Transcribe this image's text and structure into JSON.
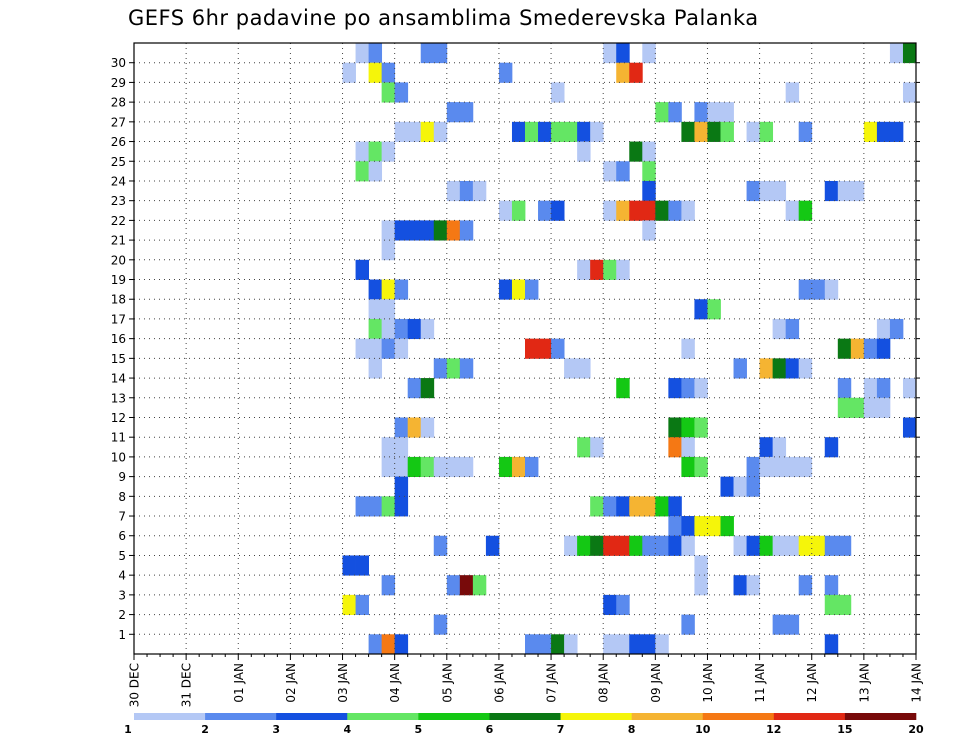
{
  "chart_data": {
    "type": "heatmap",
    "title": "GEFS 6hr padavine po ansamblima Smederevska Palanka",
    "xlabel": "",
    "ylabel": "",
    "x_tick_labels": [
      "30 DEC",
      "31 DEC",
      "01 JAN",
      "02 JAN",
      "03 JAN",
      "04 JAN",
      "05 JAN",
      "06 JAN",
      "07 JAN",
      "08 JAN",
      "09 JAN",
      "10 JAN",
      "11 JAN",
      "12 JAN",
      "13 JAN",
      "14 JAN"
    ],
    "y_tick_labels": [
      "1",
      "2",
      "3",
      "4",
      "5",
      "6",
      "7",
      "8",
      "9",
      "10",
      "11",
      "12",
      "13",
      "14",
      "15",
      "16",
      "17",
      "18",
      "19",
      "20",
      "21",
      "22",
      "23",
      "24",
      "25",
      "26",
      "27",
      "28",
      "29",
      "30"
    ],
    "x_range_steps": [
      0,
      60
    ],
    "steps_per_day": 4,
    "y_range_members": [
      0,
      30
    ],
    "grid": true,
    "legend_placement": "bottom",
    "colorbar": {
      "labels": [
        "1",
        "2",
        "3",
        "4",
        "5",
        "6",
        "7",
        "8",
        "10",
        "12",
        "15",
        "20"
      ],
      "colors": [
        "#b4c8f5",
        "#5a8aee",
        "#1450e0",
        "#64e664",
        "#14c814",
        "#0a7814",
        "#f5f50a",
        "#f5b432",
        "#f57814",
        "#e12814",
        "#780a0a"
      ]
    },
    "cells": [
      [
        30,
        17,
        1
      ],
      [
        30,
        18,
        2
      ],
      [
        30,
        22,
        2
      ],
      [
        30,
        23,
        2
      ],
      [
        30,
        36,
        1
      ],
      [
        30,
        37,
        3
      ],
      [
        30,
        39,
        1
      ],
      [
        30,
        58,
        1
      ],
      [
        30,
        59,
        6
      ],
      [
        29,
        16,
        1
      ],
      [
        29,
        18,
        7
      ],
      [
        29,
        19,
        2
      ],
      [
        29,
        28,
        2
      ],
      [
        29,
        37,
        8
      ],
      [
        29,
        38,
        10
      ],
      [
        28,
        19,
        4
      ],
      [
        28,
        20,
        2
      ],
      [
        28,
        32,
        1
      ],
      [
        28,
        50,
        1
      ],
      [
        28,
        59,
        1
      ],
      [
        27,
        24,
        2
      ],
      [
        27,
        25,
        2
      ],
      [
        27,
        40,
        4
      ],
      [
        27,
        41,
        2
      ],
      [
        27,
        43,
        2
      ],
      [
        27,
        44,
        1
      ],
      [
        27,
        45,
        1
      ],
      [
        26,
        20,
        1
      ],
      [
        26,
        21,
        1
      ],
      [
        26,
        22,
        7
      ],
      [
        26,
        23,
        1
      ],
      [
        26,
        29,
        3
      ],
      [
        26,
        30,
        4
      ],
      [
        26,
        31,
        3
      ],
      [
        26,
        32,
        4
      ],
      [
        26,
        33,
        4
      ],
      [
        26,
        34,
        3
      ],
      [
        26,
        35,
        1
      ],
      [
        26,
        42,
        6
      ],
      [
        26,
        43,
        8
      ],
      [
        26,
        44,
        6
      ],
      [
        26,
        45,
        4
      ],
      [
        26,
        47,
        1
      ],
      [
        26,
        48,
        4
      ],
      [
        26,
        51,
        2
      ],
      [
        26,
        56,
        7
      ],
      [
        26,
        57,
        3
      ],
      [
        26,
        58,
        3
      ],
      [
        25,
        17,
        1
      ],
      [
        25,
        18,
        4
      ],
      [
        25,
        19,
        1
      ],
      [
        25,
        34,
        1
      ],
      [
        25,
        38,
        6
      ],
      [
        25,
        39,
        1
      ],
      [
        24,
        17,
        4
      ],
      [
        24,
        18,
        1
      ],
      [
        24,
        36,
        1
      ],
      [
        24,
        37,
        2
      ],
      [
        24,
        39,
        4
      ],
      [
        23,
        24,
        1
      ],
      [
        23,
        25,
        2
      ],
      [
        23,
        26,
        1
      ],
      [
        23,
        39,
        3
      ],
      [
        23,
        47,
        2
      ],
      [
        23,
        48,
        1
      ],
      [
        23,
        49,
        1
      ],
      [
        23,
        53,
        3
      ],
      [
        23,
        54,
        1
      ],
      [
        23,
        55,
        1
      ],
      [
        22,
        28,
        1
      ],
      [
        22,
        29,
        4
      ],
      [
        22,
        31,
        2
      ],
      [
        22,
        32,
        3
      ],
      [
        22,
        36,
        1
      ],
      [
        22,
        37,
        8
      ],
      [
        22,
        38,
        10
      ],
      [
        22,
        39,
        10
      ],
      [
        22,
        40,
        6
      ],
      [
        22,
        41,
        2
      ],
      [
        22,
        42,
        1
      ],
      [
        22,
        50,
        1
      ],
      [
        22,
        51,
        5
      ],
      [
        21,
        19,
        1
      ],
      [
        21,
        20,
        3
      ],
      [
        21,
        21,
        3
      ],
      [
        21,
        22,
        3
      ],
      [
        21,
        23,
        6
      ],
      [
        21,
        24,
        9
      ],
      [
        21,
        25,
        2
      ],
      [
        21,
        39,
        1
      ],
      [
        20,
        19,
        1
      ],
      [
        19,
        17,
        3
      ],
      [
        19,
        34,
        1
      ],
      [
        19,
        35,
        10
      ],
      [
        19,
        36,
        4
      ],
      [
        19,
        37,
        1
      ],
      [
        18,
        18,
        3
      ],
      [
        18,
        19,
        7
      ],
      [
        18,
        20,
        2
      ],
      [
        18,
        28,
        3
      ],
      [
        18,
        29,
        7
      ],
      [
        18,
        30,
        2
      ],
      [
        18,
        51,
        2
      ],
      [
        18,
        52,
        2
      ],
      [
        18,
        53,
        1
      ],
      [
        17,
        18,
        1
      ],
      [
        17,
        19,
        1
      ],
      [
        17,
        43,
        3
      ],
      [
        17,
        44,
        4
      ],
      [
        16,
        18,
        4
      ],
      [
        16,
        19,
        1
      ],
      [
        16,
        20,
        2
      ],
      [
        16,
        21,
        3
      ],
      [
        16,
        22,
        1
      ],
      [
        16,
        49,
        1
      ],
      [
        16,
        50,
        2
      ],
      [
        16,
        57,
        1
      ],
      [
        16,
        58,
        2
      ],
      [
        15,
        17,
        1
      ],
      [
        15,
        18,
        1
      ],
      [
        15,
        19,
        2
      ],
      [
        15,
        20,
        1
      ],
      [
        15,
        30,
        10
      ],
      [
        15,
        31,
        10
      ],
      [
        15,
        32,
        2
      ],
      [
        15,
        42,
        1
      ],
      [
        15,
        54,
        6
      ],
      [
        15,
        55,
        8
      ],
      [
        15,
        56,
        2
      ],
      [
        15,
        57,
        3
      ],
      [
        14,
        18,
        1
      ],
      [
        14,
        23,
        2
      ],
      [
        14,
        24,
        4
      ],
      [
        14,
        25,
        2
      ],
      [
        14,
        33,
        1
      ],
      [
        14,
        34,
        1
      ],
      [
        14,
        46,
        2
      ],
      [
        14,
        48,
        8
      ],
      [
        14,
        49,
        6
      ],
      [
        14,
        50,
        3
      ],
      [
        14,
        51,
        1
      ],
      [
        13,
        21,
        2
      ],
      [
        13,
        22,
        6
      ],
      [
        13,
        37,
        5
      ],
      [
        13,
        41,
        3
      ],
      [
        13,
        42,
        2
      ],
      [
        13,
        43,
        1
      ],
      [
        13,
        54,
        2
      ],
      [
        13,
        56,
        1
      ],
      [
        13,
        57,
        2
      ],
      [
        13,
        59,
        1
      ],
      [
        12,
        54,
        4
      ],
      [
        12,
        55,
        4
      ],
      [
        12,
        56,
        1
      ],
      [
        12,
        57,
        1
      ],
      [
        11,
        20,
        2
      ],
      [
        11,
        21,
        8
      ],
      [
        11,
        22,
        1
      ],
      [
        11,
        41,
        6
      ],
      [
        11,
        42,
        5
      ],
      [
        11,
        43,
        4
      ],
      [
        11,
        59,
        3
      ],
      [
        10,
        19,
        1
      ],
      [
        10,
        20,
        1
      ],
      [
        10,
        34,
        4
      ],
      [
        10,
        35,
        1
      ],
      [
        10,
        41,
        9
      ],
      [
        10,
        42,
        1
      ],
      [
        10,
        48,
        3
      ],
      [
        10,
        49,
        1
      ],
      [
        10,
        53,
        3
      ],
      [
        9,
        19,
        1
      ],
      [
        9,
        20,
        1
      ],
      [
        9,
        21,
        5
      ],
      [
        9,
        22,
        4
      ],
      [
        9,
        23,
        1
      ],
      [
        9,
        24,
        1
      ],
      [
        9,
        25,
        1
      ],
      [
        9,
        28,
        5
      ],
      [
        9,
        29,
        8
      ],
      [
        9,
        30,
        2
      ],
      [
        9,
        42,
        5
      ],
      [
        9,
        43,
        4
      ],
      [
        9,
        47,
        2
      ],
      [
        9,
        48,
        1
      ],
      [
        9,
        49,
        1
      ],
      [
        9,
        50,
        1
      ],
      [
        9,
        51,
        1
      ],
      [
        8,
        20,
        3
      ],
      [
        8,
        45,
        3
      ],
      [
        8,
        46,
        1
      ],
      [
        8,
        47,
        2
      ],
      [
        7,
        17,
        2
      ],
      [
        7,
        18,
        2
      ],
      [
        7,
        19,
        4
      ],
      [
        7,
        20,
        3
      ],
      [
        7,
        35,
        4
      ],
      [
        7,
        36,
        2
      ],
      [
        7,
        37,
        3
      ],
      [
        7,
        38,
        8
      ],
      [
        7,
        39,
        8
      ],
      [
        7,
        40,
        5
      ],
      [
        7,
        41,
        3
      ],
      [
        6,
        41,
        2
      ],
      [
        6,
        42,
        3
      ],
      [
        6,
        43,
        7
      ],
      [
        6,
        44,
        7
      ],
      [
        6,
        45,
        5
      ],
      [
        5,
        23,
        2
      ],
      [
        5,
        27,
        3
      ],
      [
        5,
        33,
        1
      ],
      [
        5,
        34,
        5
      ],
      [
        5,
        35,
        6
      ],
      [
        5,
        36,
        10
      ],
      [
        5,
        37,
        10
      ],
      [
        5,
        38,
        5
      ],
      [
        5,
        39,
        2
      ],
      [
        5,
        40,
        2
      ],
      [
        5,
        41,
        3
      ],
      [
        5,
        42,
        1
      ],
      [
        5,
        46,
        1
      ],
      [
        5,
        47,
        3
      ],
      [
        5,
        48,
        5
      ],
      [
        5,
        49,
        1
      ],
      [
        5,
        50,
        1
      ],
      [
        5,
        51,
        7
      ],
      [
        5,
        52,
        7
      ],
      [
        5,
        53,
        2
      ],
      [
        5,
        54,
        2
      ],
      [
        4,
        16,
        3
      ],
      [
        4,
        17,
        3
      ],
      [
        4,
        43,
        1
      ],
      [
        3,
        19,
        2
      ],
      [
        3,
        24,
        2
      ],
      [
        3,
        25,
        11
      ],
      [
        3,
        26,
        4
      ],
      [
        3,
        43,
        1
      ],
      [
        3,
        46,
        3
      ],
      [
        3,
        47,
        1
      ],
      [
        3,
        51,
        2
      ],
      [
        3,
        53,
        2
      ],
      [
        2,
        16,
        7
      ],
      [
        2,
        17,
        2
      ],
      [
        2,
        36,
        3
      ],
      [
        2,
        37,
        2
      ],
      [
        2,
        53,
        4
      ],
      [
        2,
        54,
        4
      ],
      [
        1,
        23,
        2
      ],
      [
        1,
        42,
        2
      ],
      [
        1,
        49,
        2
      ],
      [
        1,
        50,
        2
      ],
      [
        0,
        18,
        2
      ],
      [
        0,
        19,
        9
      ],
      [
        0,
        20,
        3
      ],
      [
        0,
        30,
        2
      ],
      [
        0,
        31,
        2
      ],
      [
        0,
        32,
        6
      ],
      [
        0,
        33,
        1
      ],
      [
        0,
        36,
        1
      ],
      [
        0,
        37,
        1
      ],
      [
        0,
        38,
        3
      ],
      [
        0,
        39,
        3
      ],
      [
        0,
        40,
        1
      ],
      [
        0,
        53,
        3
      ]
    ]
  }
}
